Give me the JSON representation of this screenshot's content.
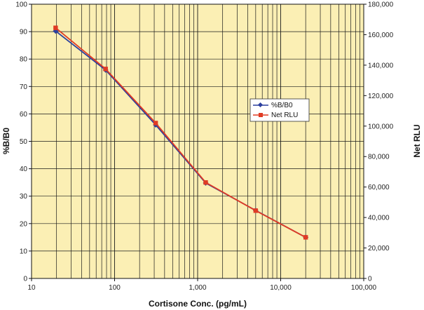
{
  "chart_data": {
    "type": "line",
    "xlabel": "Cortisone Conc. (pg/mL)",
    "ylabel": "%B/B0",
    "y2label": "Net RLU",
    "xscale": "log",
    "xlim": [
      10,
      100000
    ],
    "ylim": [
      0,
      100
    ],
    "y2lim": [
      0,
      180000
    ],
    "grid": true,
    "legend_position": "right-middle",
    "x_ticks": [
      "10",
      "100",
      "1,000",
      "10,000",
      "100,000"
    ],
    "y_ticks": [
      "0",
      "10",
      "20",
      "30",
      "40",
      "50",
      "60",
      "70",
      "80",
      "90",
      "100"
    ],
    "y2_ticks": [
      "0",
      "20,000",
      "40,000",
      "60,000",
      "80,000",
      "100,000",
      "120,000",
      "140,000",
      "160,000",
      "180,000"
    ],
    "series": [
      {
        "name": "%B/B0",
        "axis": "left",
        "color": "#2b3f9e",
        "marker": "diamond",
        "x": [
          19.5,
          78,
          312.5,
          1250,
          5000,
          20000
        ],
        "y": [
          90.2,
          76.0,
          56.0,
          34.8,
          24.8,
          15.0
        ]
      },
      {
        "name": "Net RLU",
        "axis": "right",
        "color": "#e03b24",
        "marker": "square",
        "x": [
          19.5,
          78,
          312.5,
          1250,
          5000,
          20000
        ],
        "y": [
          164500,
          137500,
          102000,
          63000,
          44500,
          27000
        ]
      }
    ]
  }
}
